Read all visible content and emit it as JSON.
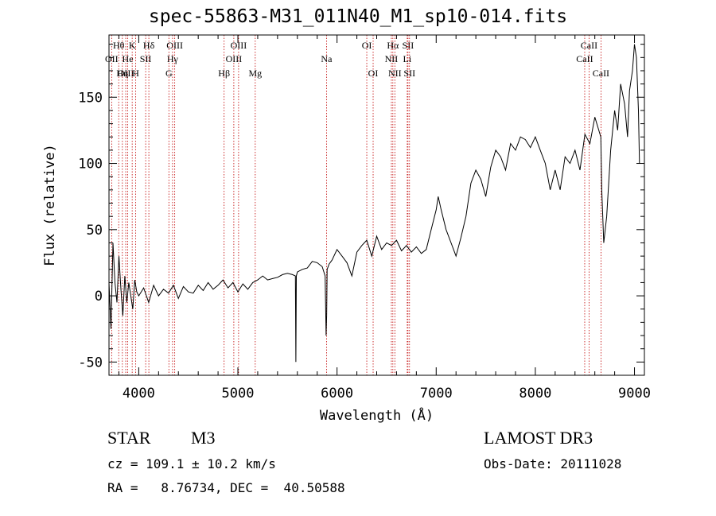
{
  "chart_data": {
    "type": "line",
    "title": "spec-55863-M31_011N40_M1_sp10-014.fits",
    "xlabel": "Wavelength (Å)",
    "ylabel": "Flux (relative)",
    "xlim": [
      3700,
      9100
    ],
    "ylim": [
      -60,
      197
    ],
    "x_ticks": [
      4000,
      5000,
      6000,
      7000,
      8000,
      9000
    ],
    "y_ticks": [
      -50,
      0,
      50,
      100,
      150
    ],
    "grid": false,
    "series": [
      {
        "name": "spectrum",
        "x": [
          3700,
          3720,
          3740,
          3760,
          3780,
          3800,
          3820,
          3840,
          3860,
          3880,
          3900,
          3920,
          3940,
          3960,
          3980,
          4000,
          4050,
          4100,
          4150,
          4200,
          4250,
          4300,
          4350,
          4400,
          4450,
          4500,
          4550,
          4600,
          4650,
          4700,
          4750,
          4800,
          4850,
          4900,
          4950,
          5000,
          5050,
          5100,
          5150,
          5200,
          5250,
          5300,
          5350,
          5400,
          5450,
          5500,
          5550,
          5580,
          5585,
          5590,
          5600,
          5650,
          5700,
          5750,
          5800,
          5850,
          5880,
          5890,
          5895,
          5900,
          5920,
          5950,
          6000,
          6050,
          6100,
          6150,
          6200,
          6250,
          6300,
          6350,
          6400,
          6450,
          6500,
          6550,
          6600,
          6650,
          6700,
          6750,
          6800,
          6850,
          6900,
          6950,
          7000,
          7020,
          7050,
          7100,
          7150,
          7200,
          7250,
          7300,
          7350,
          7400,
          7450,
          7500,
          7550,
          7600,
          7650,
          7700,
          7750,
          7800,
          7850,
          7900,
          7950,
          8000,
          8050,
          8100,
          8150,
          8200,
          8250,
          8300,
          8350,
          8400,
          8450,
          8500,
          8550,
          8600,
          8640,
          8660,
          8670,
          8690,
          8720,
          8760,
          8800,
          8830,
          8860,
          8900,
          8930,
          8950,
          8980,
          9000,
          9020,
          9040,
          9050
        ],
        "y": [
          10,
          -25,
          40,
          10,
          -5,
          30,
          5,
          -15,
          15,
          -5,
          10,
          0,
          -10,
          12,
          3,
          0,
          6,
          -5,
          8,
          0,
          5,
          2,
          8,
          -2,
          7,
          3,
          2,
          8,
          4,
          10,
          5,
          8,
          12,
          6,
          10,
          3,
          9,
          5,
          10,
          12,
          15,
          12,
          13,
          14,
          16,
          17,
          16,
          15,
          -50,
          15,
          18,
          20,
          21,
          26,
          25,
          22,
          15,
          -30,
          -15,
          20,
          24,
          27,
          35,
          30,
          25,
          15,
          33,
          38,
          42,
          30,
          45,
          35,
          40,
          38,
          42,
          34,
          38,
          33,
          37,
          32,
          35,
          50,
          65,
          75,
          65,
          50,
          40,
          30,
          44,
          60,
          85,
          95,
          88,
          75,
          97,
          110,
          105,
          95,
          115,
          110,
          120,
          118,
          112,
          120,
          110,
          100,
          80,
          95,
          80,
          105,
          100,
          110,
          95,
          122,
          115,
          135,
          125,
          120,
          80,
          40,
          60,
          110,
          140,
          125,
          160,
          145,
          120,
          155,
          170,
          190,
          180,
          140,
          100
        ]
      }
    ],
    "line_markers": [
      {
        "name": "Hθ",
        "wavelength": 3798,
        "row": 1
      },
      {
        "name": "OII",
        "wavelength": 3727,
        "row": 2
      },
      {
        "name": "OIII",
        "wavelength": 3869,
        "row": 3
      },
      {
        "name": "He",
        "wavelength": 3889,
        "row": 2
      },
      {
        "name": "K",
        "wavelength": 3934,
        "row": 1
      },
      {
        "name": "SII",
        "wavelength": 4070,
        "row": 2
      },
      {
        "name": "Hη",
        "wavelength": 3835,
        "row": 3
      },
      {
        "name": "H",
        "wavelength": 3969,
        "row": 3
      },
      {
        "name": "Hδ",
        "wavelength": 4102,
        "row": 1
      },
      {
        "name": "OIII",
        "wavelength": 4363,
        "row": 1
      },
      {
        "name": "Hγ",
        "wavelength": 4341,
        "row": 2
      },
      {
        "name": "G",
        "wavelength": 4304,
        "row": 3
      },
      {
        "name": "Hβ",
        "wavelength": 4861,
        "row": 3
      },
      {
        "name": "OIII",
        "wavelength": 5007,
        "row": 1
      },
      {
        "name": "OIII",
        "wavelength": 4959,
        "row": 2
      },
      {
        "name": "Mg",
        "wavelength": 5175,
        "row": 3
      },
      {
        "name": "Na",
        "wavelength": 5894,
        "row": 2
      },
      {
        "name": "OI",
        "wavelength": 6300,
        "row": 1
      },
      {
        "name": "OI",
        "wavelength": 6364,
        "row": 3
      },
      {
        "name": "Hα",
        "wavelength": 6563,
        "row": 1
      },
      {
        "name": "SII",
        "wavelength": 6716,
        "row": 1
      },
      {
        "name": "NII",
        "wavelength": 6548,
        "row": 2
      },
      {
        "name": "Li",
        "wavelength": 6708,
        "row": 2
      },
      {
        "name": "NII",
        "wavelength": 6583,
        "row": 3
      },
      {
        "name": "SII",
        "wavelength": 6731,
        "row": 3
      },
      {
        "name": "CaII",
        "wavelength": 8542,
        "row": 1
      },
      {
        "name": "CaII",
        "wavelength": 8498,
        "row": 2
      },
      {
        "name": "CaII",
        "wavelength": 8662,
        "row": 3
      }
    ]
  },
  "info": {
    "class": "STAR",
    "subclass": "M3",
    "survey": "LAMOST DR3",
    "cz": "cz = 109.1 ± 10.2 km/s",
    "obs_date": "Obs-Date: 20111028",
    "radec": "RA =   8.76734, DEC =  40.50588"
  },
  "colors": {
    "axis": "#000000",
    "spectrum": "#000000",
    "marker": "#c00000"
  }
}
